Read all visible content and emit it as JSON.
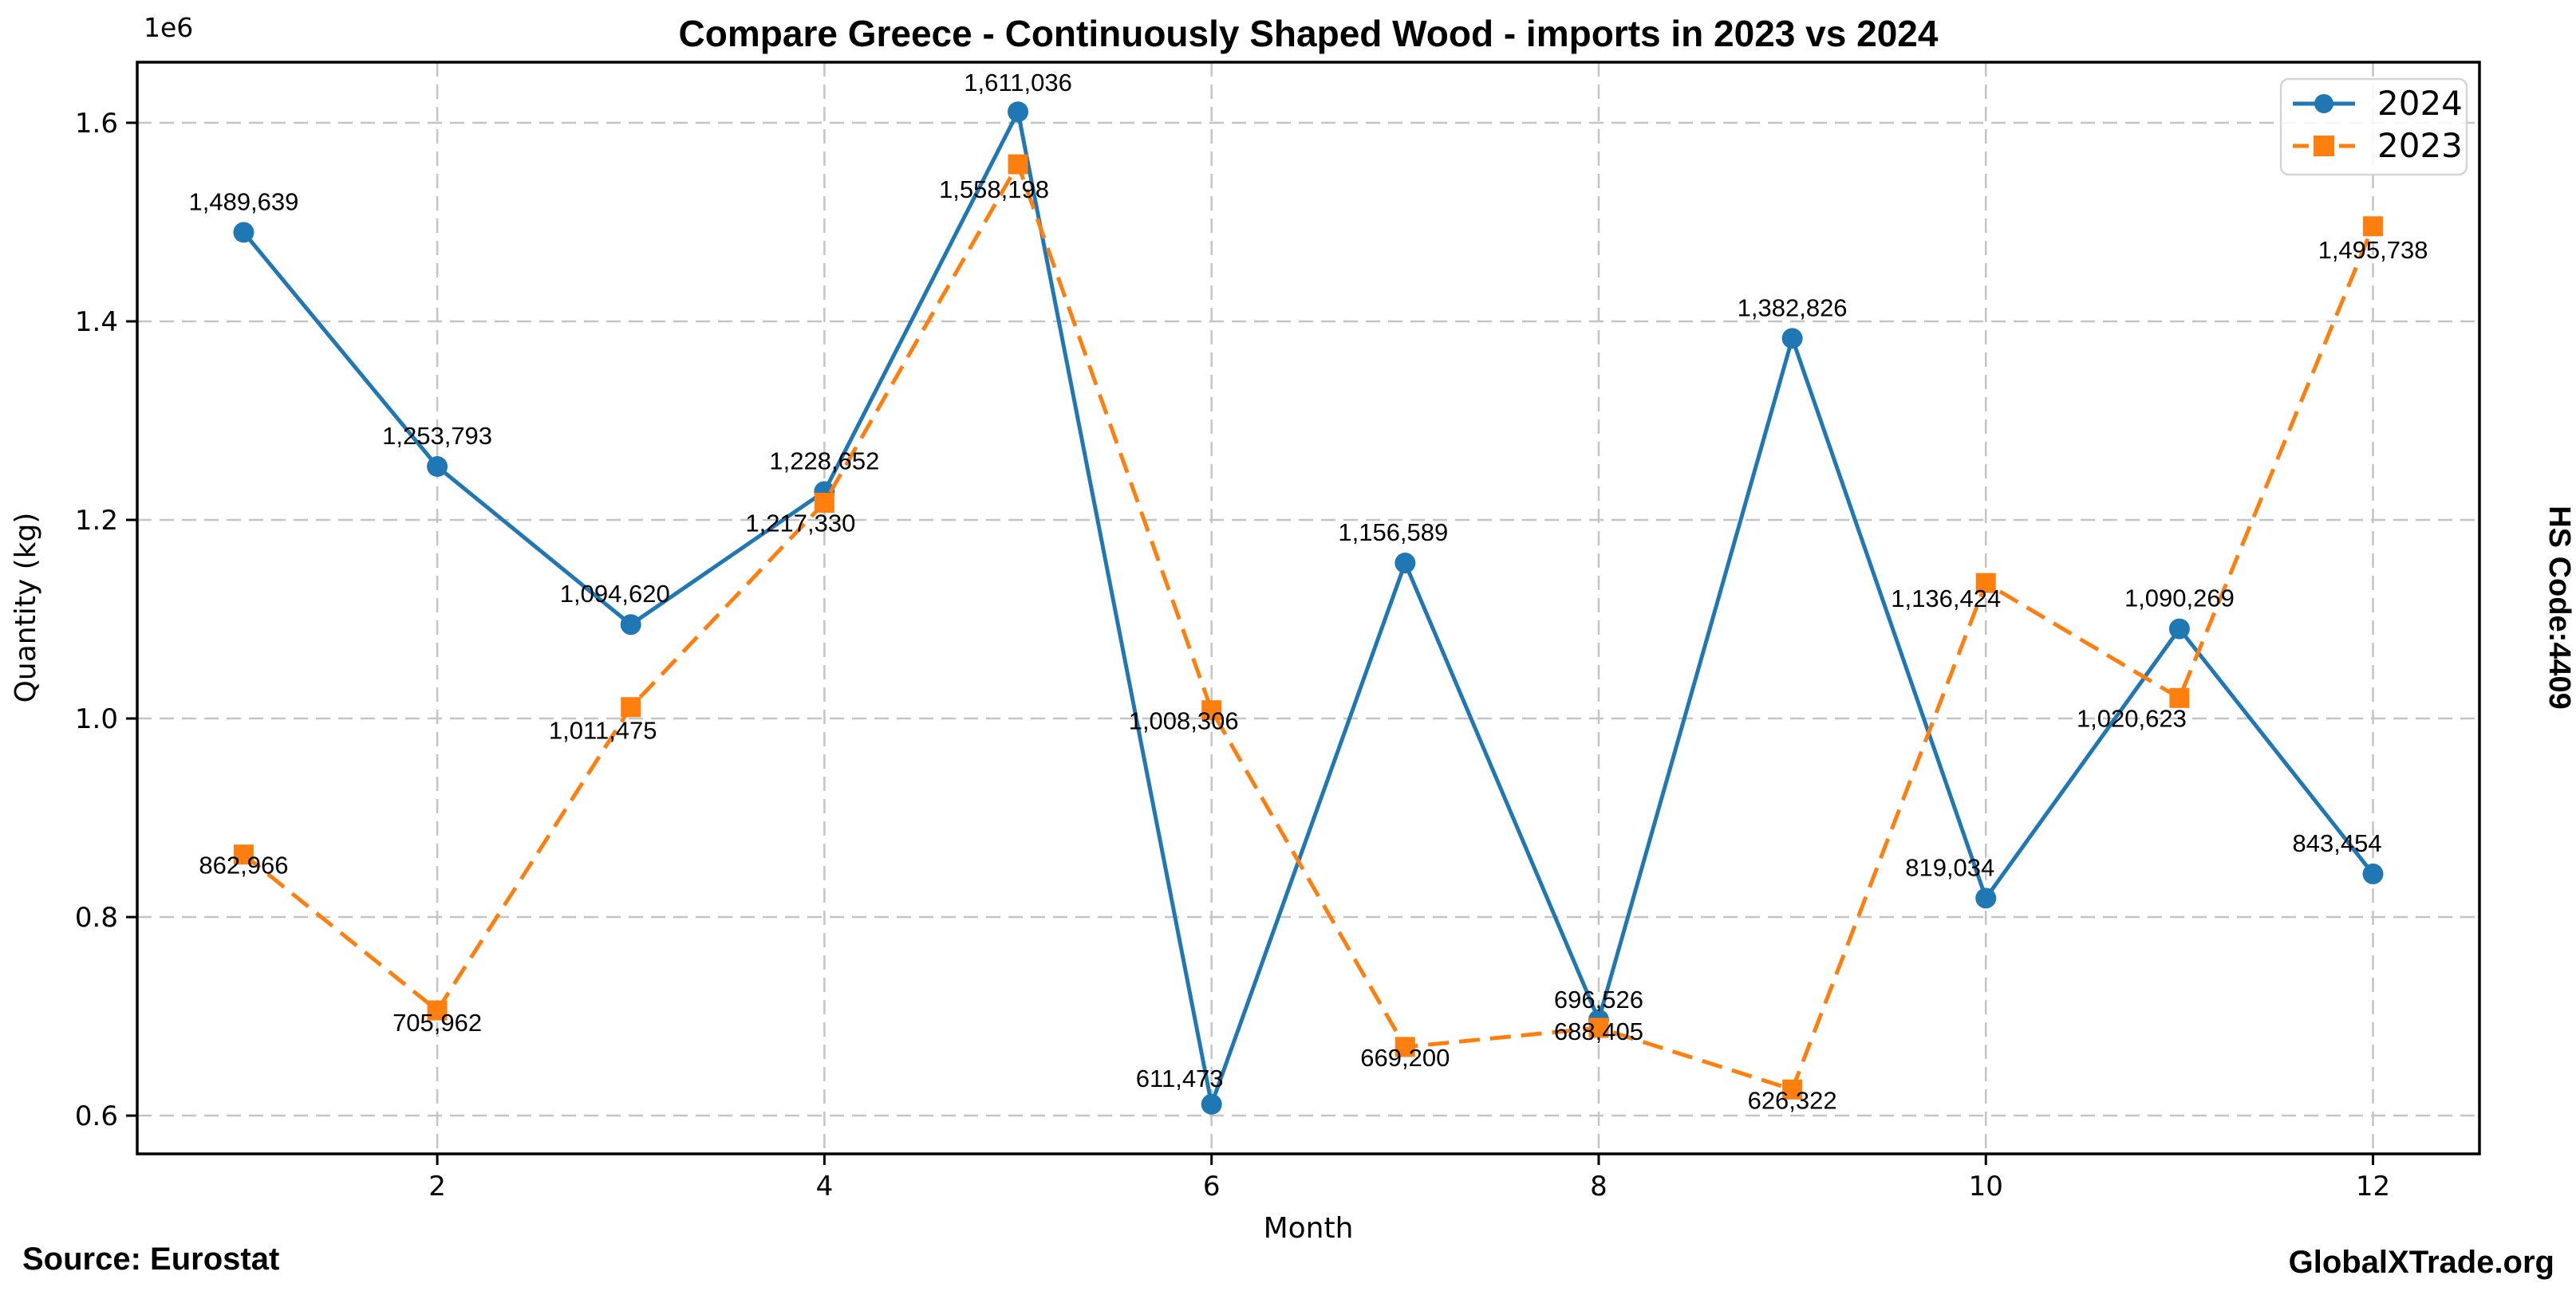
{
  "title": "Compare Greece - Continuously Shaped Wood - imports in 2023 vs 2024",
  "axis": {
    "xlabel": "Month",
    "ylabel": "Quantity (kg)",
    "offset_text": "1e6",
    "x_ticks": [
      2,
      4,
      6,
      8,
      10,
      12
    ],
    "y_ticks": [
      {
        "value": 600000,
        "label": "0.6"
      },
      {
        "value": 800000,
        "label": "0.8"
      },
      {
        "value": 1000000,
        "label": "1.0"
      },
      {
        "value": 1200000,
        "label": "1.2"
      },
      {
        "value": 1400000,
        "label": "1.4"
      },
      {
        "value": 1600000,
        "label": "1.6"
      }
    ]
  },
  "legend": {
    "items": [
      {
        "label": "2024",
        "color": "#1f77b4",
        "line_style": "solid",
        "marker": "circle"
      },
      {
        "label": "2023",
        "color": "#ff7f0e",
        "line_style": "dashed",
        "marker": "square"
      }
    ]
  },
  "footer": {
    "source": "Source: Eurostat",
    "brand": "GlobalXTrade.org"
  },
  "side_label": "HS Code:4409",
  "colors": {
    "series_2024": "#1f77b4",
    "series_2023": "#ff7f0e",
    "grid": "#c4c4c4",
    "spine": "#000000",
    "legend_border": "#d5d5d5",
    "text": "#000000",
    "background": "#ffffff"
  },
  "chart_data": {
    "type": "line",
    "title": "Compare Greece - Continuously Shaped Wood - imports in 2023 vs 2024",
    "xlabel": "Month",
    "ylabel": "Quantity (kg)",
    "x": [
      1,
      2,
      3,
      4,
      5,
      6,
      7,
      8,
      9,
      10,
      11,
      12
    ],
    "series": [
      {
        "name": "2024",
        "color": "#1f77b4",
        "line_style": "solid",
        "marker": "circle",
        "values": [
          1489639,
          1253793,
          1094620,
          1228652,
          1611036,
          611473,
          1156589,
          696526,
          1382826,
          819034,
          1090269,
          843454
        ],
        "label_dx": [
          0,
          0,
          -20,
          0,
          0,
          -40,
          -15,
          0,
          0,
          -45,
          0,
          -45
        ],
        "label_dy": [
          -28,
          -28,
          -28,
          -28,
          -26,
          -22,
          -28,
          -15,
          -28,
          -28,
          -28,
          -28
        ]
      },
      {
        "name": "2023",
        "color": "#ff7f0e",
        "line_style": "dashed",
        "marker": "square",
        "values": [
          862966,
          705962,
          1011475,
          1217330,
          1558198,
          1008306,
          669200,
          688405,
          626322,
          1136424,
          1020623,
          1495738
        ],
        "label_dx": [
          0,
          0,
          -35,
          -30,
          -30,
          -35,
          0,
          0,
          0,
          -50,
          -60,
          0
        ],
        "label_dy": [
          24,
          26,
          40,
          36,
          42,
          24,
          24,
          15,
          24,
          30,
          36,
          40
        ]
      }
    ],
    "xlim": [
      0.45,
      12.55
    ],
    "ylim": [
      561495,
      1661014
    ],
    "y_offset_factor": "1e6",
    "grid": true,
    "grid_style": "dashed",
    "legend_position": "upper right"
  }
}
